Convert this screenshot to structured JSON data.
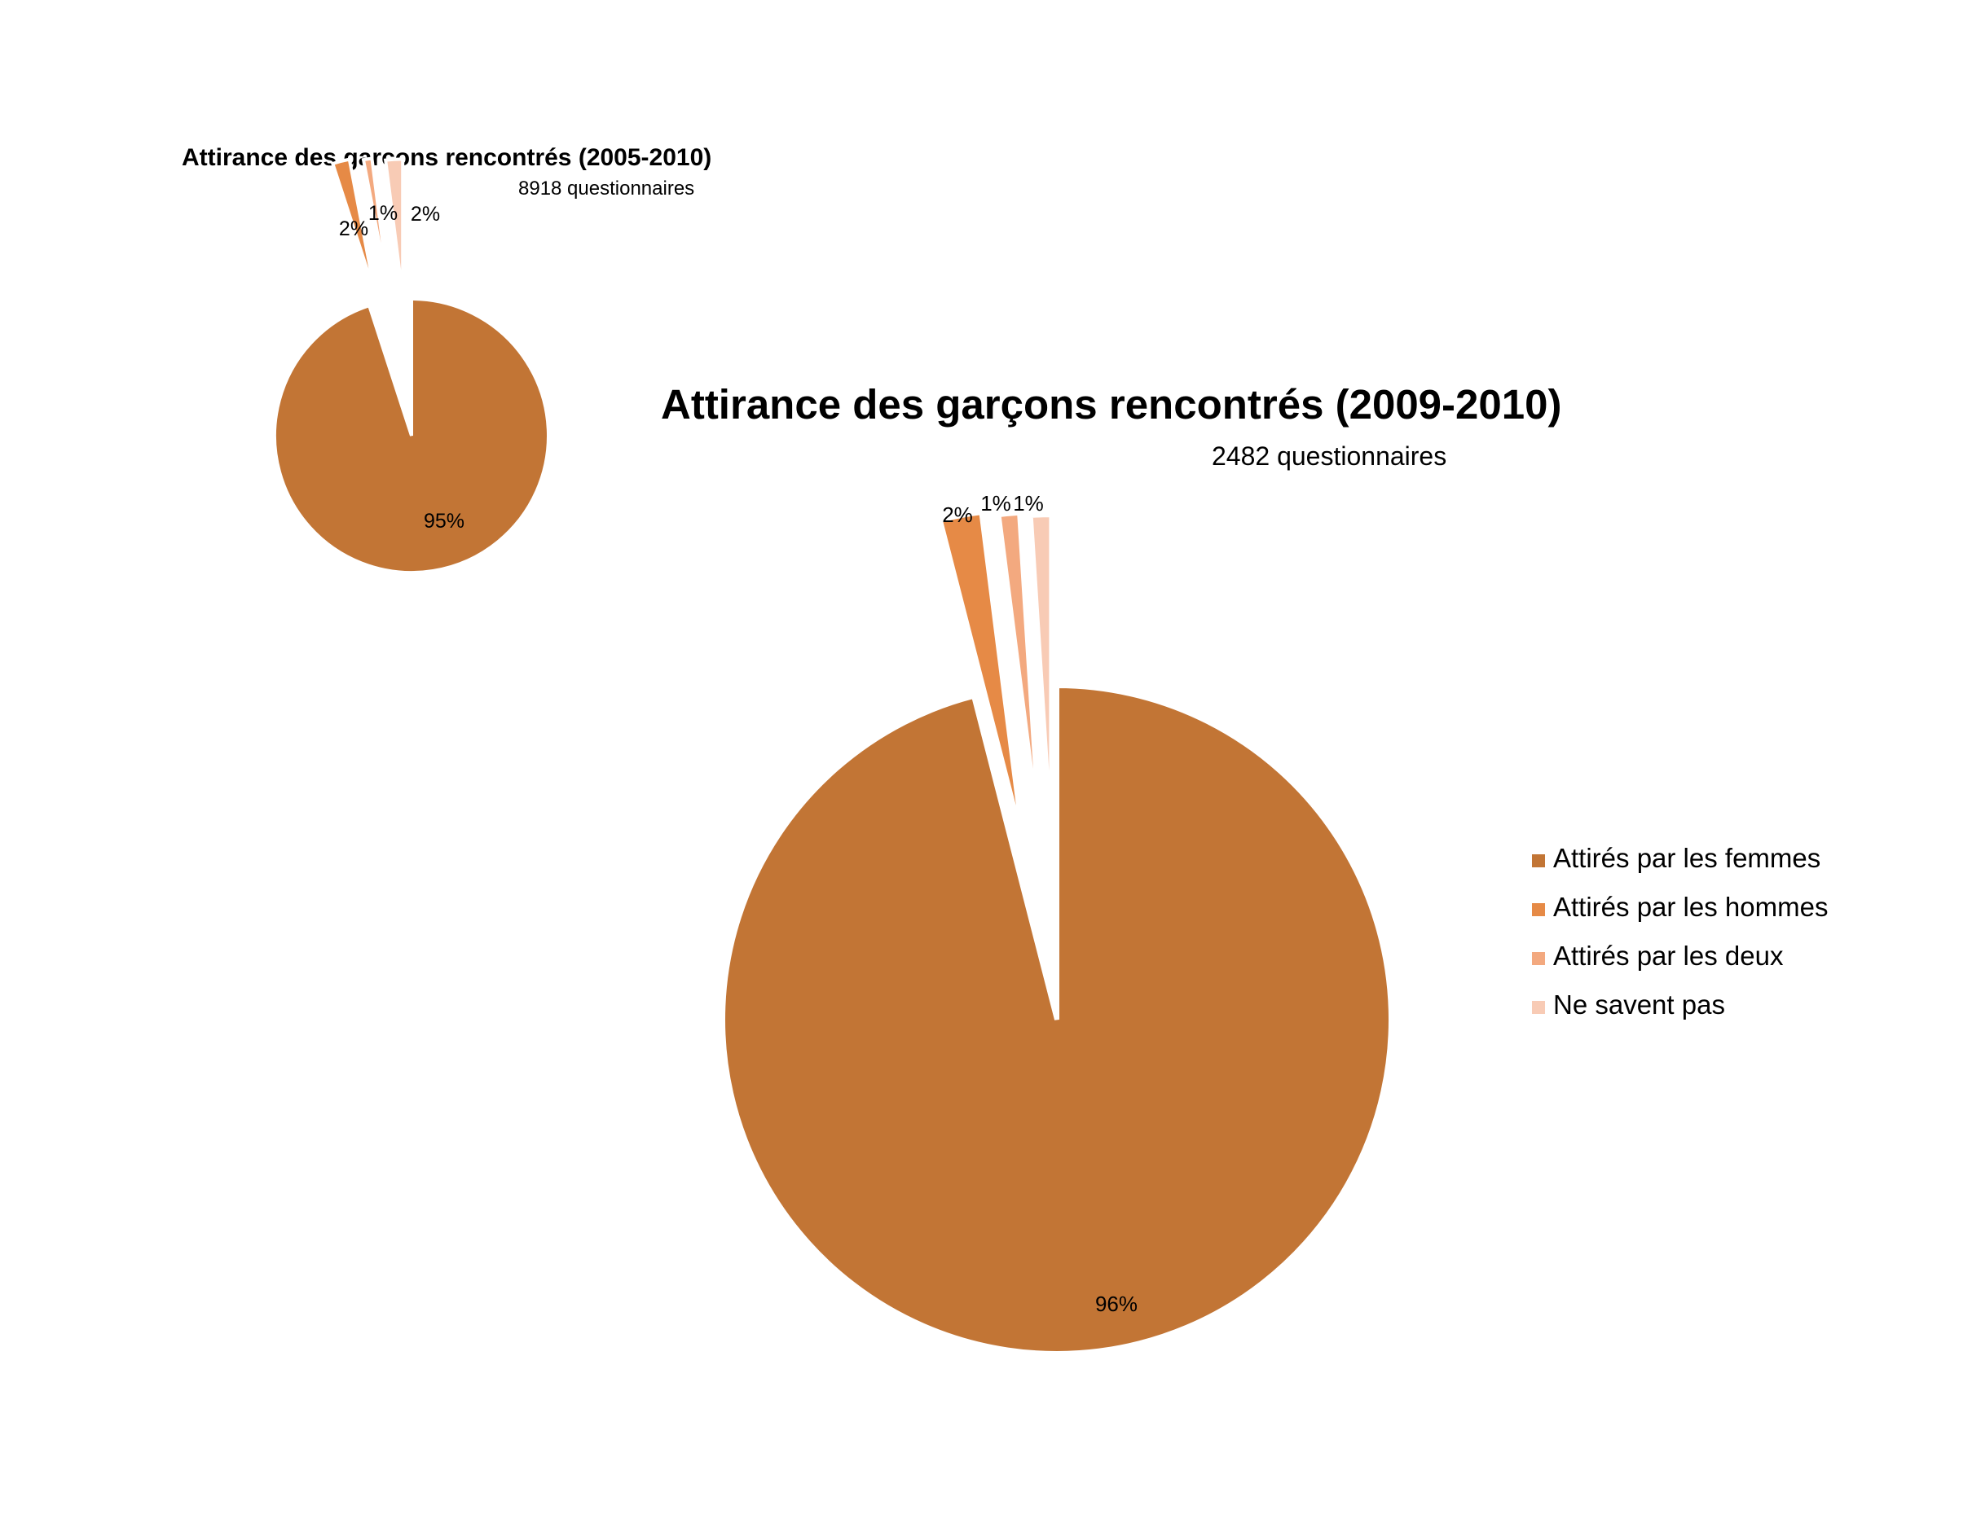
{
  "chart_data": [
    {
      "type": "pie",
      "title": "Attirance des garçons rencontrés (2005-2010)",
      "subtitle": "8918 questionnaires",
      "categories": [
        "Attirés par les femmes",
        "Attirés par les hommes",
        "Attirés par les deux",
        "Ne savent pas"
      ],
      "values": [
        95,
        2,
        1,
        2
      ],
      "labels": [
        "95%",
        "2%",
        "1%",
        "2%"
      ],
      "exploded": [
        false,
        true,
        true,
        true
      ]
    },
    {
      "type": "pie",
      "title": "Attirance des garçons rencontrés (2009-2010)",
      "subtitle": "2482 questionnaires",
      "categories": [
        "Attirés par les femmes",
        "Attirés par les hommes",
        "Attirés par les deux",
        "Ne savent pas"
      ],
      "values": [
        96,
        2,
        1,
        1
      ],
      "labels": [
        "96%",
        "2%",
        "1%",
        "1%"
      ],
      "exploded": [
        false,
        true,
        true,
        true
      ],
      "legend": {
        "position": "right",
        "entries": [
          "Attirés par les femmes",
          "Attirés par les hommes",
          "Attirés par les deux",
          "Ne savent pas"
        ]
      }
    }
  ],
  "colors": [
    "#c27535",
    "#e68a46",
    "#f3a97f",
    "#f8cbb5"
  ]
}
